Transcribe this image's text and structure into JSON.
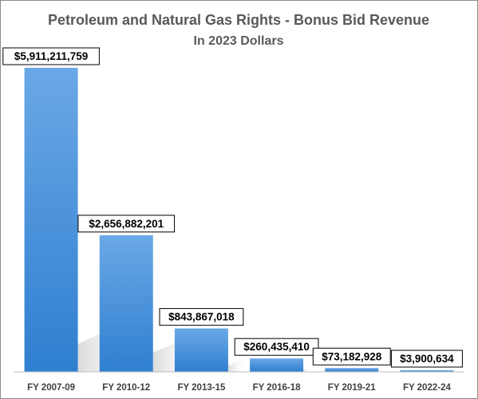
{
  "chart_data": {
    "type": "bar",
    "title": "Petroleum and Natural Gas Rights - Bonus Bid Revenue",
    "subtitle": "In 2023 Dollars",
    "categories": [
      "FY 2007-09",
      "FY 2010-12",
      "FY 2013-15",
      "FY 2016-18",
      "FY 2019-21",
      "FY 2022-24"
    ],
    "values": [
      5911211759,
      2656882201,
      843867018,
      260435410,
      73182928,
      3900634
    ],
    "data_labels": [
      "$5,911,211,759",
      "$2,656,882,201",
      "$843,867,018",
      "$260,435,410",
      "$73,182,928",
      "$3,900,634"
    ],
    "ylim": [
      0,
      6000000000
    ],
    "grid": false,
    "legend": "none",
    "colors": {
      "bar_top": "#6aa8e6",
      "bar_bottom": "#2f7fd0",
      "title": "#595959",
      "axis": "#bfbfbf"
    }
  }
}
